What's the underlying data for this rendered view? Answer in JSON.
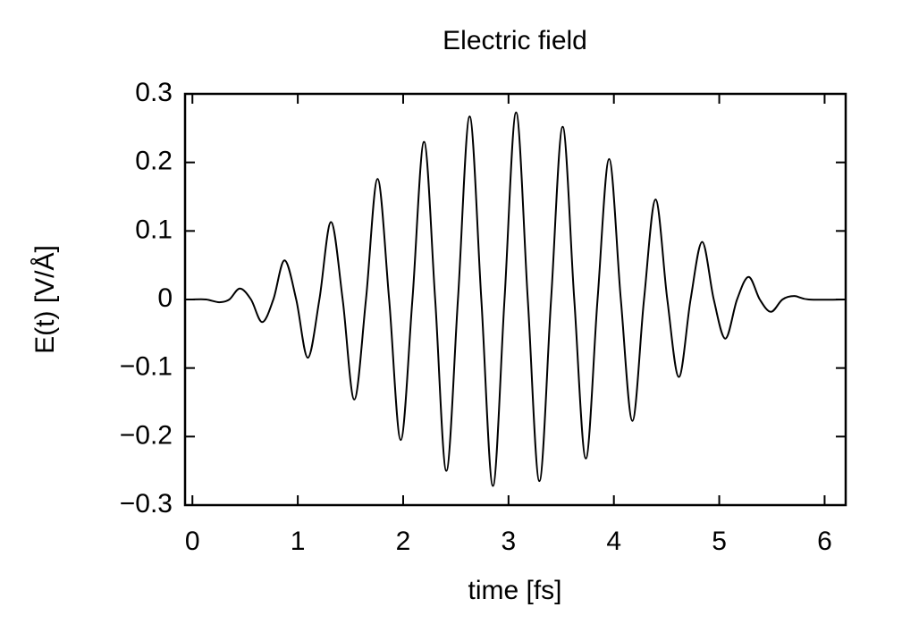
{
  "chart_data": {
    "type": "line",
    "title": "Electric field",
    "x_label": "time [fs]",
    "y_label": "E(t) [V/Å]",
    "x": [
      0.0,
      0.13,
      0.255,
      0.35,
      0.45,
      0.556,
      0.662,
      0.768,
      0.874,
      0.985,
      1.095,
      1.205,
      1.315,
      1.426,
      1.536,
      1.647,
      1.757,
      1.867,
      1.977,
      2.088,
      2.198,
      2.304,
      2.41,
      2.52,
      2.631,
      2.742,
      2.852,
      2.962,
      3.072,
      3.183,
      3.293,
      3.404,
      3.514,
      3.624,
      3.734,
      3.845,
      3.955,
      4.066,
      4.176,
      4.286,
      4.396,
      4.507,
      4.617,
      4.728,
      4.838,
      4.948,
      5.058,
      5.169,
      5.279,
      5.385,
      5.491,
      5.6,
      5.712,
      5.85,
      6.2
    ],
    "series": [
      {
        "name": "E(t)",
        "color": "#000000",
        "values": [
          0,
          0,
          -0.004,
          0,
          0.016,
          0,
          -0.033,
          0,
          0.057,
          0,
          -0.085,
          0,
          0.113,
          0,
          -0.146,
          0,
          0.176,
          0,
          -0.205,
          0,
          0.23,
          0,
          -0.25,
          0,
          0.267,
          0,
          -0.272,
          0,
          0.273,
          0,
          -0.265,
          0,
          0.252,
          0,
          -0.232,
          0,
          0.205,
          0,
          -0.177,
          0,
          0.146,
          0,
          -0.113,
          0,
          0.084,
          0,
          -0.057,
          0,
          0.033,
          0,
          -0.018,
          0,
          0.005,
          0,
          0
        ]
      }
    ],
    "xlim": [
      -0.07,
      6.2
    ],
    "ylim": [
      -0.3,
      0.3
    ],
    "xticks": [
      0,
      1,
      2,
      3,
      4,
      5,
      6
    ],
    "yticks": [
      {
        "value": -0.3,
        "label": "−0.3"
      },
      {
        "value": -0.2,
        "label": "−0.2"
      },
      {
        "value": -0.1,
        "label": "−0.1"
      },
      0,
      0.1,
      0.2,
      0.3
    ],
    "grid": false
  }
}
